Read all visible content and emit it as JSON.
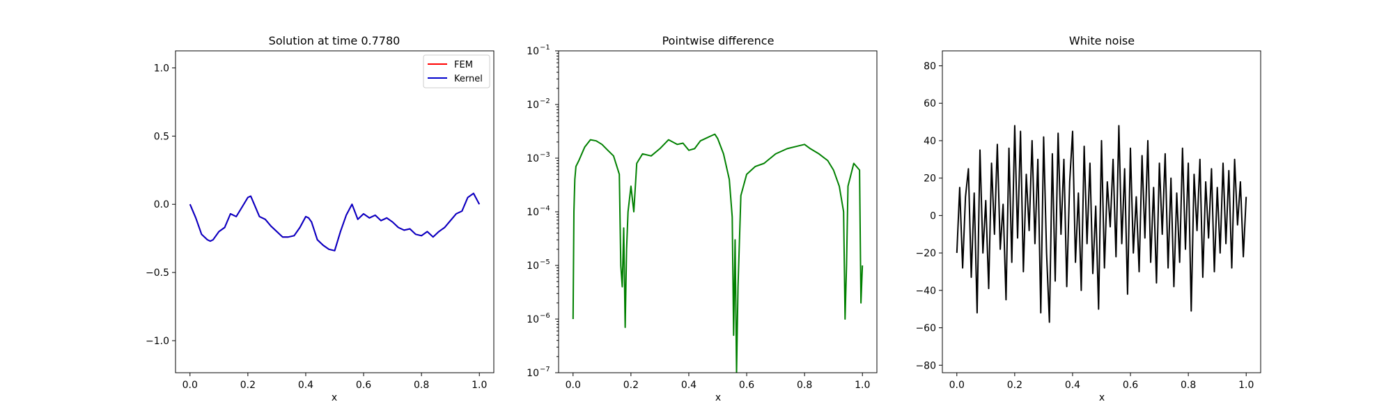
{
  "colors": {
    "fem": "#ff0000",
    "kernel": "#0000cc",
    "difference": "#008000",
    "noise": "#000000"
  },
  "chart_data": [
    {
      "type": "line",
      "title": "Solution at time 0.7780",
      "xlabel": "x",
      "ylabel": "",
      "xlim": [
        -0.05,
        1.05
      ],
      "ylim": [
        -1.235,
        1.125
      ],
      "x_ticks": [
        0.0,
        0.2,
        0.4,
        0.6,
        0.8,
        1.0
      ],
      "x_tick_labels": [
        "0.0",
        "0.2",
        "0.4",
        "0.6",
        "0.8",
        "1.0"
      ],
      "y_ticks": [
        1.0,
        0.5,
        0.0,
        -0.5,
        -1.0
      ],
      "y_tick_labels": [
        "1.0",
        "0.5",
        "0.0",
        "−0.5",
        "−1.0"
      ],
      "legend": "top-right",
      "x": [
        0.0,
        0.02,
        0.04,
        0.06,
        0.07,
        0.08,
        0.1,
        0.12,
        0.14,
        0.16,
        0.18,
        0.2,
        0.21,
        0.22,
        0.24,
        0.26,
        0.28,
        0.3,
        0.32,
        0.34,
        0.36,
        0.38,
        0.4,
        0.41,
        0.42,
        0.44,
        0.46,
        0.48,
        0.5,
        0.52,
        0.54,
        0.56,
        0.58,
        0.6,
        0.62,
        0.64,
        0.66,
        0.68,
        0.7,
        0.72,
        0.74,
        0.76,
        0.78,
        0.8,
        0.82,
        0.84,
        0.86,
        0.88,
        0.9,
        0.92,
        0.94,
        0.96,
        0.98,
        1.0
      ],
      "series": [
        {
          "name": "FEM",
          "values": [
            0.0,
            -0.1,
            -0.22,
            -0.26,
            -0.27,
            -0.26,
            -0.2,
            -0.17,
            -0.07,
            -0.09,
            -0.02,
            0.05,
            0.06,
            0.01,
            -0.09,
            -0.11,
            -0.16,
            -0.2,
            -0.24,
            -0.24,
            -0.23,
            -0.17,
            -0.09,
            -0.1,
            -0.13,
            -0.26,
            -0.3,
            -0.33,
            -0.34,
            -0.2,
            -0.08,
            0.0,
            -0.11,
            -0.07,
            -0.1,
            -0.08,
            -0.12,
            -0.1,
            -0.13,
            -0.17,
            -0.19,
            -0.18,
            -0.22,
            -0.23,
            -0.2,
            -0.24,
            -0.2,
            -0.17,
            -0.12,
            -0.07,
            -0.05,
            0.05,
            0.08,
            0.0
          ]
        },
        {
          "name": "Kernel",
          "values": [
            0.0,
            -0.1,
            -0.22,
            -0.26,
            -0.27,
            -0.26,
            -0.2,
            -0.17,
            -0.07,
            -0.09,
            -0.02,
            0.05,
            0.06,
            0.01,
            -0.09,
            -0.11,
            -0.16,
            -0.2,
            -0.24,
            -0.24,
            -0.23,
            -0.17,
            -0.09,
            -0.1,
            -0.13,
            -0.26,
            -0.3,
            -0.33,
            -0.34,
            -0.2,
            -0.08,
            0.0,
            -0.11,
            -0.07,
            -0.1,
            -0.08,
            -0.12,
            -0.1,
            -0.13,
            -0.17,
            -0.19,
            -0.18,
            -0.22,
            -0.23,
            -0.2,
            -0.24,
            -0.2,
            -0.17,
            -0.12,
            -0.07,
            -0.05,
            0.05,
            0.08,
            0.0
          ]
        }
      ]
    },
    {
      "type": "line",
      "title": "Pointwise difference",
      "xlabel": "x",
      "ylabel": "",
      "yscale": "log",
      "xlim": [
        -0.05,
        1.05
      ],
      "ylim": [
        1e-07,
        0.1
      ],
      "x_ticks": [
        0.0,
        0.2,
        0.4,
        0.6,
        0.8,
        1.0
      ],
      "x_tick_labels": [
        "0.0",
        "0.2",
        "0.4",
        "0.6",
        "0.8",
        "1.0"
      ],
      "y_ticks": [
        0.1,
        0.01,
        0.001,
        0.0001,
        1e-05,
        1e-06,
        1e-07
      ],
      "y_tick_labels": [
        "10",
        "10",
        "10",
        "10",
        "10",
        "10",
        "10"
      ],
      "y_tick_exponents": [
        "−1",
        "−2",
        "−3",
        "−4",
        "−5",
        "−6",
        "−7"
      ],
      "x": [
        0.0,
        0.003,
        0.006,
        0.01,
        0.02,
        0.04,
        0.06,
        0.08,
        0.1,
        0.12,
        0.14,
        0.16,
        0.165,
        0.17,
        0.175,
        0.18,
        0.185,
        0.19,
        0.2,
        0.21,
        0.22,
        0.24,
        0.27,
        0.3,
        0.33,
        0.36,
        0.38,
        0.4,
        0.42,
        0.44,
        0.47,
        0.49,
        0.5,
        0.52,
        0.54,
        0.55,
        0.555,
        0.56,
        0.565,
        0.57,
        0.575,
        0.58,
        0.6,
        0.63,
        0.66,
        0.7,
        0.74,
        0.78,
        0.8,
        0.82,
        0.85,
        0.88,
        0.9,
        0.92,
        0.935,
        0.94,
        0.945,
        0.95,
        0.97,
        0.99,
        0.995,
        1.0
      ],
      "series": [
        {
          "name": "",
          "values": [
            1e-06,
            0.0001,
            0.0004,
            0.0007,
            0.0009,
            0.0016,
            0.0022,
            0.0021,
            0.0018,
            0.0014,
            0.0011,
            0.0005,
            1e-05,
            4e-06,
            5e-05,
            7e-07,
            2e-05,
            0.0001,
            0.0003,
            0.0001,
            0.0008,
            0.0012,
            0.0011,
            0.0015,
            0.0022,
            0.0018,
            0.0019,
            0.0014,
            0.0015,
            0.0021,
            0.0025,
            0.0028,
            0.0023,
            0.0012,
            0.0004,
            8e-05,
            5e-07,
            3e-05,
            1e-07,
            4e-06,
            3e-05,
            0.0002,
            0.0005,
            0.0007,
            0.0008,
            0.0012,
            0.0015,
            0.0017,
            0.0018,
            0.0015,
            0.0012,
            0.0009,
            0.0006,
            0.0003,
            0.0001,
            1e-06,
            1e-05,
            0.0003,
            0.0008,
            0.0006,
            2e-06,
            1e-05
          ]
        }
      ]
    },
    {
      "type": "line",
      "title": "White noise",
      "xlabel": "x",
      "ylabel": "",
      "xlim": [
        -0.05,
        1.05
      ],
      "ylim": [
        -84,
        88
      ],
      "x_ticks": [
        0.0,
        0.2,
        0.4,
        0.6,
        0.8,
        1.0
      ],
      "x_tick_labels": [
        "0.0",
        "0.2",
        "0.4",
        "0.6",
        "0.8",
        "1.0"
      ],
      "y_ticks": [
        80,
        60,
        40,
        20,
        0,
        -20,
        -40,
        -60,
        -80
      ],
      "y_tick_labels": [
        "80",
        "60",
        "40",
        "20",
        "0",
        "−20",
        "−40",
        "−60",
        "−80"
      ],
      "x": [
        0.0,
        0.01,
        0.02,
        0.03,
        0.04,
        0.05,
        0.06,
        0.07,
        0.08,
        0.09,
        0.1,
        0.11,
        0.12,
        0.13,
        0.14,
        0.15,
        0.16,
        0.17,
        0.18,
        0.19,
        0.2,
        0.21,
        0.22,
        0.23,
        0.24,
        0.25,
        0.26,
        0.27,
        0.28,
        0.29,
        0.3,
        0.31,
        0.32,
        0.33,
        0.34,
        0.35,
        0.36,
        0.37,
        0.38,
        0.39,
        0.4,
        0.41,
        0.42,
        0.43,
        0.44,
        0.45,
        0.46,
        0.47,
        0.48,
        0.49,
        0.5,
        0.51,
        0.52,
        0.53,
        0.54,
        0.55,
        0.56,
        0.57,
        0.58,
        0.59,
        0.6,
        0.61,
        0.62,
        0.63,
        0.64,
        0.65,
        0.66,
        0.67,
        0.68,
        0.69,
        0.7,
        0.71,
        0.72,
        0.73,
        0.74,
        0.75,
        0.76,
        0.77,
        0.78,
        0.79,
        0.8,
        0.81,
        0.82,
        0.83,
        0.84,
        0.85,
        0.86,
        0.87,
        0.88,
        0.89,
        0.9,
        0.91,
        0.92,
        0.93,
        0.94,
        0.95,
        0.96,
        0.97,
        0.98,
        0.99,
        1.0
      ],
      "series": [
        {
          "name": "",
          "values": [
            -20,
            15,
            -28,
            10,
            25,
            -33,
            12,
            -52,
            35,
            -20,
            8,
            -39,
            28,
            -10,
            38,
            -18,
            6,
            -45,
            36,
            -25,
            48,
            -12,
            45,
            -30,
            22,
            -8,
            40,
            -15,
            30,
            -52,
            42,
            -20,
            -57,
            33,
            -35,
            44,
            -10,
            30,
            -38,
            18,
            45,
            -25,
            12,
            -40,
            37,
            -15,
            28,
            -31,
            5,
            -50,
            40,
            -28,
            18,
            -6,
            30,
            -22,
            48,
            -15,
            25,
            -42,
            36,
            -20,
            10,
            -30,
            32,
            -12,
            40,
            -25,
            15,
            -36,
            28,
            -10,
            33,
            -28,
            20,
            -38,
            12,
            -25,
            36,
            -18,
            28,
            -51,
            22,
            -8,
            30,
            -33,
            18,
            -12,
            25,
            -30,
            15,
            -20,
            28,
            -15,
            24,
            -28,
            30,
            -5,
            18,
            -22,
            10
          ]
        }
      ]
    }
  ]
}
